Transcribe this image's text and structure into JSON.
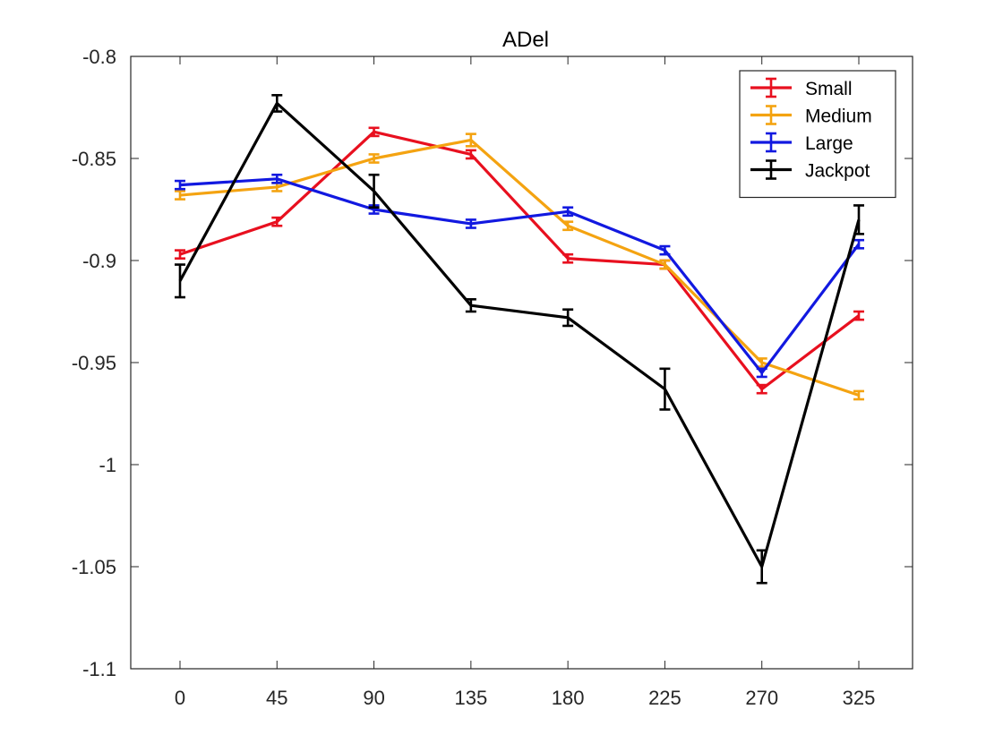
{
  "chart_data": {
    "type": "line",
    "title": "ADel",
    "xlabel": "",
    "ylabel": "",
    "categories": [
      "0",
      "45",
      "90",
      "135",
      "180",
      "225",
      "270",
      "325"
    ],
    "ylim": [
      -1.1,
      -0.8
    ],
    "yticks": [
      -0.8,
      -0.85,
      -0.9,
      -0.95,
      -1,
      -1.05,
      -1.1
    ],
    "ytick_labels": [
      "-0.8",
      "-0.85",
      "-0.9",
      "-0.95",
      "-1",
      "-1.05",
      "-1.1"
    ],
    "grid": false,
    "legend_position": "top-right",
    "error_bars": true,
    "series": [
      {
        "name": "Small",
        "color": "#e8101f",
        "values": [
          -0.897,
          -0.881,
          -0.837,
          -0.848,
          -0.899,
          -0.902,
          -0.963,
          -0.927
        ],
        "errors": [
          0.002,
          0.002,
          0.002,
          0.002,
          0.002,
          0.002,
          0.002,
          0.002
        ]
      },
      {
        "name": "Medium",
        "color": "#f4a311",
        "values": [
          -0.868,
          -0.864,
          -0.85,
          -0.841,
          -0.883,
          -0.902,
          -0.95,
          -0.966
        ],
        "errors": [
          0.002,
          0.002,
          0.002,
          0.003,
          0.002,
          0.002,
          0.002,
          0.002
        ]
      },
      {
        "name": "Large",
        "color": "#1219e0",
        "values": [
          -0.863,
          -0.86,
          -0.875,
          -0.882,
          -0.876,
          -0.895,
          -0.955,
          -0.892
        ],
        "errors": [
          0.002,
          0.002,
          0.002,
          0.002,
          0.002,
          0.002,
          0.002,
          0.002
        ]
      },
      {
        "name": "Jackpot",
        "color": "#000000",
        "values": [
          -0.91,
          -0.823,
          -0.866,
          -0.922,
          -0.928,
          -0.963,
          -1.05,
          -0.88
        ],
        "errors": [
          0.008,
          0.004,
          0.008,
          0.003,
          0.004,
          0.01,
          0.008,
          0.007
        ]
      }
    ]
  }
}
